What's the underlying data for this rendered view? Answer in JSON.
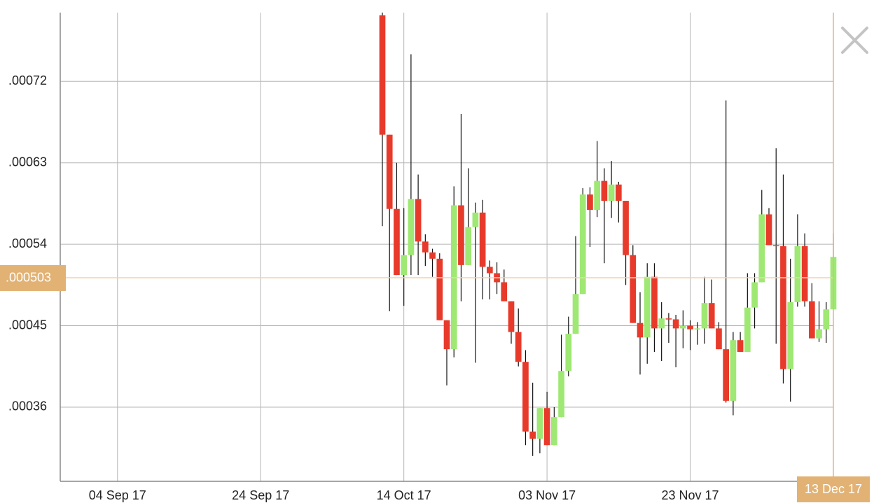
{
  "chart_data": {
    "type": "candlestick",
    "x": [
      "2017-10-11",
      "2017-10-12",
      "2017-10-13",
      "2017-10-14",
      "2017-10-15",
      "2017-10-16",
      "2017-10-17",
      "2017-10-18",
      "2017-10-19",
      "2017-10-20",
      "2017-10-21",
      "2017-10-22",
      "2017-10-23",
      "2017-10-24",
      "2017-10-25",
      "2017-10-26",
      "2017-10-27",
      "2017-10-28",
      "2017-10-29",
      "2017-10-30",
      "2017-10-31",
      "2017-11-01",
      "2017-11-02",
      "2017-11-03",
      "2017-11-04",
      "2017-11-05",
      "2017-11-06",
      "2017-11-07",
      "2017-11-08",
      "2017-11-09",
      "2017-11-10",
      "2017-11-11",
      "2017-11-12",
      "2017-11-13",
      "2017-11-14",
      "2017-11-15",
      "2017-11-16",
      "2017-11-17",
      "2017-11-18",
      "2017-11-19",
      "2017-11-20",
      "2017-11-21",
      "2017-11-22",
      "2017-11-23",
      "2017-11-24",
      "2017-11-25",
      "2017-11-26",
      "2017-11-27",
      "2017-11-28",
      "2017-11-29",
      "2017-11-30",
      "2017-12-01",
      "2017-12-02",
      "2017-12-03",
      "2017-12-04",
      "2017-12-05",
      "2017-12-06",
      "2017-12-07",
      "2017-12-08",
      "2017-12-09",
      "2017-12-10",
      "2017-12-11",
      "2017-12-12",
      "2017-12-13"
    ],
    "open": [
      0.000793,
      0.000661,
      0.000579,
      0.000506,
      0.000528,
      0.00059,
      0.000543,
      0.000531,
      0.000524,
      0.000456,
      0.000424,
      0.000583,
      0.000517,
      0.000559,
      0.000575,
      0.000515,
      0.000508,
      0.000498,
      0.000477,
      0.000443,
      0.00041,
      0.000333,
      0.000325,
      0.000359,
      0.000318,
      0.000349,
      0.0004,
      0.000441,
      0.000485,
      0.000595,
      0.000578,
      0.00061,
      0.000588,
      0.000606,
      0.000588,
      0.000528,
      0.000453,
      0.000437,
      0.000504,
      0.000447,
      0.000458,
      0.000457,
      0.000447,
      0.00045,
      0.000446,
      0.000447,
      0.000475,
      0.000447,
      0.000424,
      0.000367,
      0.000434,
      0.000421,
      0.00047,
      0.000498,
      0.000573,
      0.000539,
      0.000538,
      0.000402,
      0.000476,
      0.000538,
      0.000477,
      0.000436,
      0.000446,
      0.000468
    ],
    "high": [
      0.000796,
      0.000661,
      0.00063,
      0.00058,
      0.00075,
      0.000617,
      0.000551,
      0.000535,
      0.00053,
      0.000456,
      0.000604,
      0.000684,
      0.000624,
      0.000586,
      0.000589,
      0.000522,
      0.00052,
      0.000512,
      0.000477,
      0.000469,
      0.000423,
      0.000387,
      0.000359,
      0.000377,
      0.00036,
      0.00044,
      0.00046,
      0.000549,
      0.000602,
      0.000603,
      0.000654,
      0.000624,
      0.000632,
      0.000609,
      0.000588,
      0.000539,
      0.000487,
      0.000519,
      0.000519,
      0.000476,
      0.000464,
      0.000462,
      0.000467,
      0.000456,
      0.000454,
      0.000504,
      0.000501,
      0.000454,
      0.000699,
      0.000443,
      0.000443,
      0.000508,
      0.000508,
      0.0006,
      0.00058,
      0.000646,
      0.000617,
      0.000524,
      0.000573,
      0.000552,
      0.000497,
      0.000477,
      0.000476,
      0.000552
    ],
    "low": [
      0.00056,
      0.000466,
      0.000506,
      0.000472,
      0.000506,
      0.000506,
      0.000516,
      0.000504,
      0.000456,
      0.000384,
      0.000415,
      0.000477,
      0.000517,
      0.000409,
      0.000479,
      0.000479,
      0.000485,
      0.000477,
      0.00043,
      0.000405,
      0.000318,
      0.000306,
      0.000309,
      0.000318,
      0.000318,
      0.000349,
      0.000394,
      0.000441,
      0.000485,
      0.000537,
      0.00057,
      0.000519,
      0.000569,
      0.000564,
      0.000495,
      0.000453,
      0.000396,
      0.000408,
      0.000421,
      0.000411,
      0.000431,
      0.000404,
      0.000425,
      0.000423,
      0.000429,
      0.00043,
      0.000447,
      0.000424,
      0.000365,
      0.000351,
      0.000421,
      0.000421,
      0.000447,
      0.000498,
      0.000539,
      0.00043,
      0.000386,
      0.000366,
      0.000471,
      0.000471,
      0.000436,
      0.000432,
      0.000431,
      0.000468
    ],
    "close": [
      0.000661,
      0.000579,
      0.000506,
      0.000528,
      0.00059,
      0.000543,
      0.000531,
      0.000524,
      0.000456,
      0.000424,
      0.000583,
      0.000517,
      0.000559,
      0.000575,
      0.000515,
      0.000508,
      0.000498,
      0.000477,
      0.000443,
      0.00041,
      0.000333,
      0.000325,
      0.000359,
      0.000318,
      0.000349,
      0.0004,
      0.000441,
      0.000485,
      0.000595,
      0.000578,
      0.00061,
      0.000588,
      0.000606,
      0.000588,
      0.000528,
      0.000453,
      0.000437,
      0.000504,
      0.000447,
      0.000458,
      0.000457,
      0.000447,
      0.00045,
      0.000446,
      0.000447,
      0.000475,
      0.000447,
      0.000424,
      0.000367,
      0.000434,
      0.000421,
      0.00047,
      0.000498,
      0.000573,
      0.000539,
      0.000538,
      0.000402,
      0.000476,
      0.000538,
      0.000477,
      0.000436,
      0.000446,
      0.000468,
      0.000526
    ],
    "up_color": "#9ee873",
    "down_color": "#e83a2b",
    "xlim": [
      "2017-08-27",
      "2017-12-13"
    ],
    "xticks": [
      {
        "value": "2017-09-04",
        "label": "04 Sep 17"
      },
      {
        "value": "2017-09-24",
        "label": "24 Sep 17"
      },
      {
        "value": "2017-10-14",
        "label": "14 Oct 17"
      },
      {
        "value": "2017-11-03",
        "label": "03 Nov 17"
      },
      {
        "value": "2017-11-23",
        "label": "23 Nov 17"
      }
    ],
    "ylim": [
      0.000278,
      0.000796
    ],
    "yticks": [
      {
        "value": 0.00036,
        "label": ".00036"
      },
      {
        "value": 0.00045,
        "label": ".00045"
      },
      {
        "value": 0.00054,
        "label": ".00054"
      },
      {
        "value": 0.00063,
        "label": ".00063"
      },
      {
        "value": 0.00072,
        "label": ".00072"
      }
    ],
    "grid": true,
    "current_price": {
      "value": 0.000503,
      "label": ".000503"
    },
    "cursor_date": {
      "value": "2017-12-13",
      "label": "13 Dec 17"
    }
  }
}
